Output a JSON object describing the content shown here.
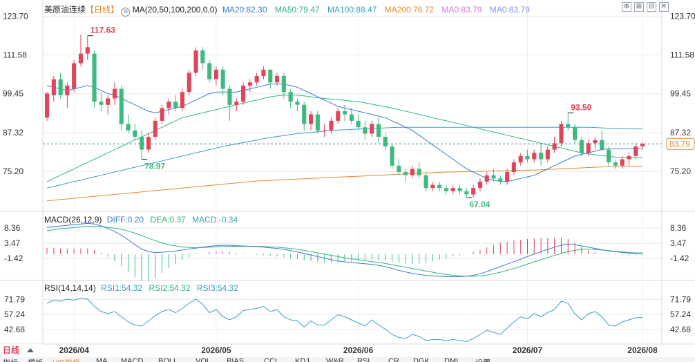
{
  "header": {
    "symbol": "美原油连续",
    "period": "【日线】",
    "ma_formula": "MA(20,50,100,200,0,0)",
    "ma_items": [
      {
        "label": "MA20:82.30",
        "color": "#3a7bd5"
      },
      {
        "label": "MA50:79.47",
        "color": "#2db67c"
      },
      {
        "label": "MA100:88.47",
        "color": "#3a9fbf"
      },
      {
        "label": "MA200:76.72",
        "color": "#e8862a"
      },
      {
        "label": "MA0:83.79",
        "color": "#d77bd8"
      },
      {
        "label": "MA0:83.79",
        "color": "#8c8cf0"
      }
    ],
    "buttons": [
      "⊕",
      "⊞",
      "⊟",
      "✕"
    ]
  },
  "macd_header": {
    "title": "MACD(26,12,9)",
    "items": [
      {
        "label": "DIFF:0.20",
        "color": "#3a7bd5"
      },
      {
        "label": "DEA:0.37",
        "color": "#2db67c"
      },
      {
        "label": "MACD:-0.34",
        "color": "#3a9fbf"
      }
    ]
  },
  "rsi_header": {
    "title": "RSI(14,14,14)",
    "items": [
      {
        "label": "RSI1:54.32",
        "color": "#3a9fbf"
      },
      {
        "label": "RSI2:54.32",
        "color": "#2db67c"
      },
      {
        "label": "RSI3:54.32",
        "color": "#3a9fbf"
      }
    ]
  },
  "colors": {
    "up": "#e0455a",
    "down": "#3fba7e",
    "ma20": "#3a7bd5",
    "ma50": "#2db67c",
    "ma100": "#3a9fbf",
    "ma200": "#e8862a",
    "grid": "#e4e8ee",
    "last": "#e8862a"
  },
  "price_axis": {
    "ticks": [
      "123.70",
      "111.58",
      "99.45",
      "87.32",
      "75.20"
    ],
    "last_price": "83.79"
  },
  "macd_axis": {
    "ticks": [
      "8.36",
      "3.47",
      "-1.42"
    ]
  },
  "rsi_axis": {
    "ticks": [
      "71.79",
      "57.24",
      "42.68"
    ]
  },
  "x_axis": {
    "labels": [
      "2026/04",
      "2026/05",
      "2026/06",
      "2026/07",
      "2026/08"
    ],
    "period_button": "日线"
  },
  "annotations": {
    "high": "117.63",
    "low1": "78.97",
    "low2": "67.04",
    "high2": "93.50"
  },
  "bottom_tabs": [
    "指标",
    "模板",
    "VIP指标",
    "MA",
    "MACD",
    "BOLL",
    "VOL",
    "BIAS",
    "CCI",
    "KDJ",
    "W&R",
    "RSI",
    "CR",
    "DGK",
    "DMI",
    "设置"
  ],
  "chart_data": {
    "type": "candlestick",
    "price_ylim": [
      64,
      124
    ],
    "candles": [
      [
        92,
        100,
        91,
        99.5
      ],
      [
        99,
        105,
        97,
        104
      ],
      [
        104,
        106,
        98,
        99
      ],
      [
        99,
        103,
        95,
        102
      ],
      [
        101,
        110,
        100,
        109
      ],
      [
        109,
        118,
        108,
        112
      ],
      [
        112,
        117.6,
        110,
        114
      ],
      [
        112,
        113,
        95,
        97
      ],
      [
        97,
        100,
        94,
        96
      ],
      [
        96,
        99,
        93,
        98
      ],
      [
        98,
        103,
        96,
        101
      ],
      [
        101,
        102,
        88,
        90
      ],
      [
        90,
        93,
        87,
        88
      ],
      [
        88,
        90,
        85,
        86
      ],
      [
        86,
        88,
        79,
        82
      ],
      [
        82,
        87,
        81,
        86
      ],
      [
        86,
        92,
        85,
        91
      ],
      [
        91,
        96,
        90,
        95
      ],
      [
        95,
        98,
        93,
        97
      ],
      [
        97,
        99,
        94,
        95
      ],
      [
        95,
        101,
        94,
        100
      ],
      [
        100,
        107,
        99,
        106
      ],
      [
        106,
        114,
        105,
        113
      ],
      [
        113,
        114,
        107,
        109
      ],
      [
        109,
        110,
        103,
        104
      ],
      [
        104,
        108,
        102,
        107
      ],
      [
        107,
        108,
        99,
        101
      ],
      [
        101,
        102,
        91,
        96
      ],
      [
        96,
        98,
        94,
        97
      ],
      [
        97,
        103,
        96,
        102
      ],
      [
        102,
        104,
        100,
        103
      ],
      [
        103,
        106,
        102,
        105
      ],
      [
        105,
        108,
        104,
        107
      ],
      [
        107,
        107,
        101,
        103
      ],
      [
        103,
        106,
        102,
        105
      ],
      [
        105,
        106,
        98,
        100
      ],
      [
        100,
        101,
        95,
        97
      ],
      [
        97,
        98,
        94,
        96
      ],
      [
        96,
        97,
        88,
        90
      ],
      [
        90,
        94,
        88,
        93
      ],
      [
        93,
        94,
        87,
        88
      ],
      [
        88,
        90,
        86,
        88
      ],
      [
        88,
        92,
        87,
        91
      ],
      [
        91,
        95,
        90,
        94
      ],
      [
        94,
        96,
        91,
        93
      ],
      [
        93,
        95,
        90,
        91
      ],
      [
        91,
        93,
        88,
        89
      ],
      [
        89,
        91,
        85,
        87
      ],
      [
        87,
        91,
        86,
        90
      ],
      [
        90,
        92,
        84,
        86
      ],
      [
        86,
        87,
        82,
        83
      ],
      [
        83,
        84,
        76,
        77
      ],
      [
        77,
        79,
        74,
        75
      ],
      [
        75,
        76,
        72,
        74
      ],
      [
        74,
        77,
        73,
        76
      ],
      [
        76,
        78,
        73,
        74
      ],
      [
        74,
        75,
        69,
        70
      ],
      [
        70,
        72,
        69,
        71
      ],
      [
        71,
        72,
        69,
        70
      ],
      [
        70,
        71,
        68,
        69
      ],
      [
        69,
        71,
        68,
        70
      ],
      [
        70,
        71,
        68,
        69
      ],
      [
        69,
        70,
        67.04,
        68
      ],
      [
        68,
        71,
        67,
        70
      ],
      [
        70,
        73,
        69,
        72
      ],
      [
        72,
        75,
        71,
        74
      ],
      [
        74,
        76,
        72,
        73
      ],
      [
        73,
        74,
        71,
        72
      ],
      [
        72,
        76,
        71,
        75
      ],
      [
        75,
        79,
        74,
        78
      ],
      [
        78,
        81,
        77,
        80
      ],
      [
        80,
        82,
        78,
        79
      ],
      [
        79,
        82,
        78,
        81
      ],
      [
        81,
        84,
        77,
        79
      ],
      [
        79,
        83,
        78,
        82
      ],
      [
        82,
        86,
        81,
        84
      ],
      [
        84,
        91,
        83,
        90
      ],
      [
        90,
        93.5,
        88,
        89
      ],
      [
        89,
        90,
        84,
        85
      ],
      [
        85,
        86,
        80,
        81
      ],
      [
        81,
        85,
        80,
        84
      ],
      [
        84,
        86,
        82,
        85
      ],
      [
        85,
        88,
        82,
        82
      ],
      [
        82,
        83,
        77,
        78
      ],
      [
        78,
        79,
        76,
        77
      ],
      [
        77,
        80,
        76,
        79
      ],
      [
        79,
        81,
        77,
        80
      ],
      [
        80,
        84,
        79,
        83
      ],
      [
        83,
        84.5,
        82,
        83.79
      ]
    ],
    "ma20": [
      102,
      101.5,
      101,
      100.5,
      101,
      101.5,
      102,
      101.5,
      100.5,
      99.5,
      99,
      98,
      97,
      96,
      95,
      94,
      93.5,
      94,
      94.5,
      95,
      95.5,
      96.5,
      97.5,
      98.5,
      99.5,
      100,
      100,
      100,
      100,
      100.5,
      101,
      101.5,
      102,
      102.5,
      102.5,
      102.5,
      102,
      101.5,
      100.5,
      99.5,
      98.5,
      97.5,
      96.5,
      95.5,
      95,
      94.5,
      94,
      93.5,
      93,
      92.5,
      92,
      91,
      90,
      89,
      88,
      86.5,
      85,
      83.5,
      82,
      80.5,
      79,
      77.5,
      76,
      75,
      74,
      73,
      72.5,
      72,
      72,
      72.5,
      73,
      73.5,
      74,
      75,
      76,
      77,
      78,
      79,
      80,
      80.5,
      81,
      81.5,
      82,
      82.3,
      82.3,
      82.3,
      82.3,
      82.3,
      82.3
    ],
    "ma50": [
      72,
      73,
      74,
      75,
      76,
      77,
      78,
      79,
      80,
      81,
      82,
      83,
      84,
      85,
      86,
      87,
      88,
      89,
      90,
      91,
      92,
      92.5,
      93,
      93.5,
      94,
      94.5,
      95,
      95.5,
      96,
      96.5,
      97,
      97.5,
      98,
      98.5,
      98.8,
      99,
      99,
      99,
      98.8,
      98.5,
      98.2,
      98,
      97.8,
      97.6,
      97.4,
      97.2,
      97,
      96.6,
      96.2,
      95.8,
      95.4,
      95,
      94.5,
      94,
      93.5,
      93,
      92.5,
      92,
      91.5,
      91,
      90.5,
      90,
      89.5,
      89,
      88.5,
      88,
      87.5,
      87,
      86.5,
      86,
      85.5,
      85,
      84.5,
      84,
      83.5,
      83,
      82.5,
      82,
      81.5,
      81,
      80.7,
      80.4,
      80.1,
      79.9,
      79.7,
      79.6,
      79.5,
      79.5,
      79.47
    ],
    "ma100": [
      70,
      70.5,
      71,
      71.5,
      72,
      72.5,
      73,
      73.5,
      74,
      74.5,
      75,
      75.5,
      76,
      76.5,
      77,
      77.5,
      78,
      78.5,
      79,
      79.5,
      80,
      80.5,
      81,
      81.5,
      82,
      82.5,
      83,
      83.4,
      83.8,
      84.2,
      84.6,
      85,
      85.4,
      85.8,
      86.1,
      86.4,
      86.7,
      87,
      87.2,
      87.4,
      87.6,
      87.8,
      88,
      88.1,
      88.2,
      88.3,
      88.4,
      88.5,
      88.6,
      88.7,
      88.8,
      88.9,
      89,
      89,
      89,
      89,
      89,
      89,
      89,
      89,
      89,
      89,
      89,
      89,
      89,
      89,
      89,
      89,
      89,
      89,
      89,
      89,
      89,
      89,
      89,
      89,
      89,
      89,
      89,
      89,
      89,
      88.9,
      88.8,
      88.7,
      88.6,
      88.5,
      88.5,
      88.47,
      88.47
    ],
    "ma200": [
      66,
      66.2,
      66.4,
      66.6,
      66.8,
      67,
      67.2,
      67.4,
      67.6,
      67.8,
      68,
      68.2,
      68.4,
      68.6,
      68.8,
      69,
      69.2,
      69.4,
      69.6,
      69.8,
      70,
      70.2,
      70.4,
      70.6,
      70.8,
      71,
      71.2,
      71.4,
      71.6,
      71.8,
      72,
      72.2,
      72.3,
      72.4,
      72.5,
      72.6,
      72.7,
      72.8,
      72.9,
      73,
      73.1,
      73.2,
      73.3,
      73.4,
      73.5,
      73.6,
      73.7,
      73.8,
      73.9,
      74,
      74.1,
      74.2,
      74.3,
      74.4,
      74.5,
      74.6,
      74.7,
      74.8,
      74.9,
      75,
      75,
      75.1,
      75.1,
      75.2,
      75.2,
      75.3,
      75.3,
      75.4,
      75.4,
      75.5,
      75.5,
      75.6,
      75.6,
      75.7,
      75.8,
      75.9,
      76,
      76.1,
      76.2,
      76.3,
      76.4,
      76.5,
      76.6,
      76.65,
      76.7,
      76.72,
      76.72,
      76.72,
      76.72
    ],
    "macd_ylim": [
      -8,
      11
    ],
    "diff": [
      8.5,
      8.8,
      9,
      9.2,
      9.4,
      9.6,
      9.8,
      9.6,
      9,
      8.2,
      7.2,
      6,
      4.6,
      3,
      1.6,
      0.8,
      0.5,
      0.6,
      0.8,
      1,
      1.3,
      1.6,
      1.9,
      2.2,
      2.5,
      2.7,
      2.8,
      2.8,
      2.7,
      2.6,
      2.5,
      2.4,
      2.2,
      2,
      1.8,
      1.5,
      1.1,
      0.7,
      0.2,
      -0.3,
      -0.8,
      -1.3,
      -1.8,
      -2.2,
      -2.5,
      -2.7,
      -2.9,
      -3.1,
      -3.3,
      -3.6,
      -4,
      -4.6,
      -5.2,
      -5.7,
      -6.2,
      -6.5,
      -6.8,
      -7,
      -7.1,
      -7.2,
      -7.2,
      -7.2,
      -7.1,
      -6.8,
      -6.3,
      -5.6,
      -4.8,
      -4,
      -3.2,
      -2.4,
      -1.6,
      -0.8,
      0,
      0.8,
      1.5,
      2.2,
      2.8,
      3.2,
      3,
      2.6,
      2.2,
      1.8,
      1.4,
      1,
      0.8,
      0.5,
      0.3,
      0.2,
      0.2
    ],
    "dea": [
      7.5,
      7.8,
      8.1,
      8.3,
      8.5,
      8.7,
      8.9,
      8.9,
      8.8,
      8.6,
      8.3,
      7.9,
      7.4,
      6.7,
      5.9,
      5.1,
      4.3,
      3.6,
      3,
      2.6,
      2.3,
      2.1,
      2,
      2.1,
      2.2,
      2.3,
      2.4,
      2.5,
      2.5,
      2.5,
      2.5,
      2.5,
      2.4,
      2.3,
      2.2,
      2,
      1.8,
      1.5,
      1.2,
      0.8,
      0.4,
      0,
      -0.4,
      -0.8,
      -1.2,
      -1.5,
      -1.8,
      -2.1,
      -2.4,
      -2.7,
      -3,
      -3.4,
      -3.8,
      -4.2,
      -4.6,
      -5,
      -5.4,
      -5.8,
      -6.2,
      -6.5,
      -6.8,
      -7,
      -7.1,
      -7.1,
      -7,
      -6.7,
      -6.3,
      -5.8,
      -5.2,
      -4.6,
      -3.9,
      -3.2,
      -2.5,
      -1.8,
      -1.1,
      -0.4,
      0.2,
      0.8,
      1.2,
      1.5,
      1.6,
      1.5,
      1.3,
      1.1,
      0.9,
      0.7,
      0.5,
      0.4,
      0.37
    ],
    "macd_hist": [
      2,
      2,
      1.8,
      1.8,
      1.8,
      1.8,
      1.8,
      1.4,
      0.4,
      -0.8,
      -2.2,
      -3.8,
      -5.6,
      -7.4,
      -8.6,
      -8.6,
      -7.6,
      -6,
      -4.4,
      -3.2,
      -2,
      -1,
      -0.2,
      0.2,
      0.6,
      0.8,
      0.8,
      0.6,
      0.4,
      0.2,
      0,
      -0.2,
      -0.4,
      -0.6,
      -0.8,
      -1,
      -1.4,
      -1.6,
      -2,
      -2.2,
      -2.4,
      -2.6,
      -2.8,
      -2.8,
      -2.6,
      -2.4,
      -2.2,
      -2,
      -1.8,
      -1.8,
      -2,
      -2.4,
      -2.8,
      -3,
      -3.2,
      -3,
      -2.8,
      -2.4,
      -1.8,
      -1.4,
      -0.8,
      -0.4,
      0,
      0.6,
      1.4,
      2.2,
      3,
      3.6,
      4,
      4.4,
      4.6,
      4.8,
      5,
      5.2,
      5.2,
      5.2,
      5.2,
      4.8,
      3.6,
      2.2,
      1.2,
      0.6,
      0.2,
      -0.2,
      -0.2,
      -0.4,
      -0.4,
      -0.4,
      -0.34
    ],
    "rsi_ylim": [
      30,
      82
    ],
    "rsi": [
      68,
      71,
      70,
      72,
      71,
      73,
      72,
      65,
      60,
      58,
      60,
      55,
      50,
      47,
      46,
      51,
      56,
      60,
      62,
      59,
      63,
      68,
      72,
      67,
      59,
      62,
      55,
      52,
      55,
      61,
      62,
      63,
      65,
      60,
      62,
      55,
      52,
      51,
      45,
      51,
      47,
      47,
      52,
      57,
      55,
      52,
      49,
      46,
      52,
      47,
      43,
      38,
      35,
      34,
      38,
      36,
      32,
      33,
      33,
      32,
      33,
      32,
      31,
      34,
      38,
      42,
      40,
      38,
      44,
      50,
      55,
      53,
      58,
      55,
      59,
      62,
      70,
      68,
      58,
      52,
      58,
      60,
      55,
      47,
      46,
      50,
      52,
      54,
      54.32
    ]
  }
}
